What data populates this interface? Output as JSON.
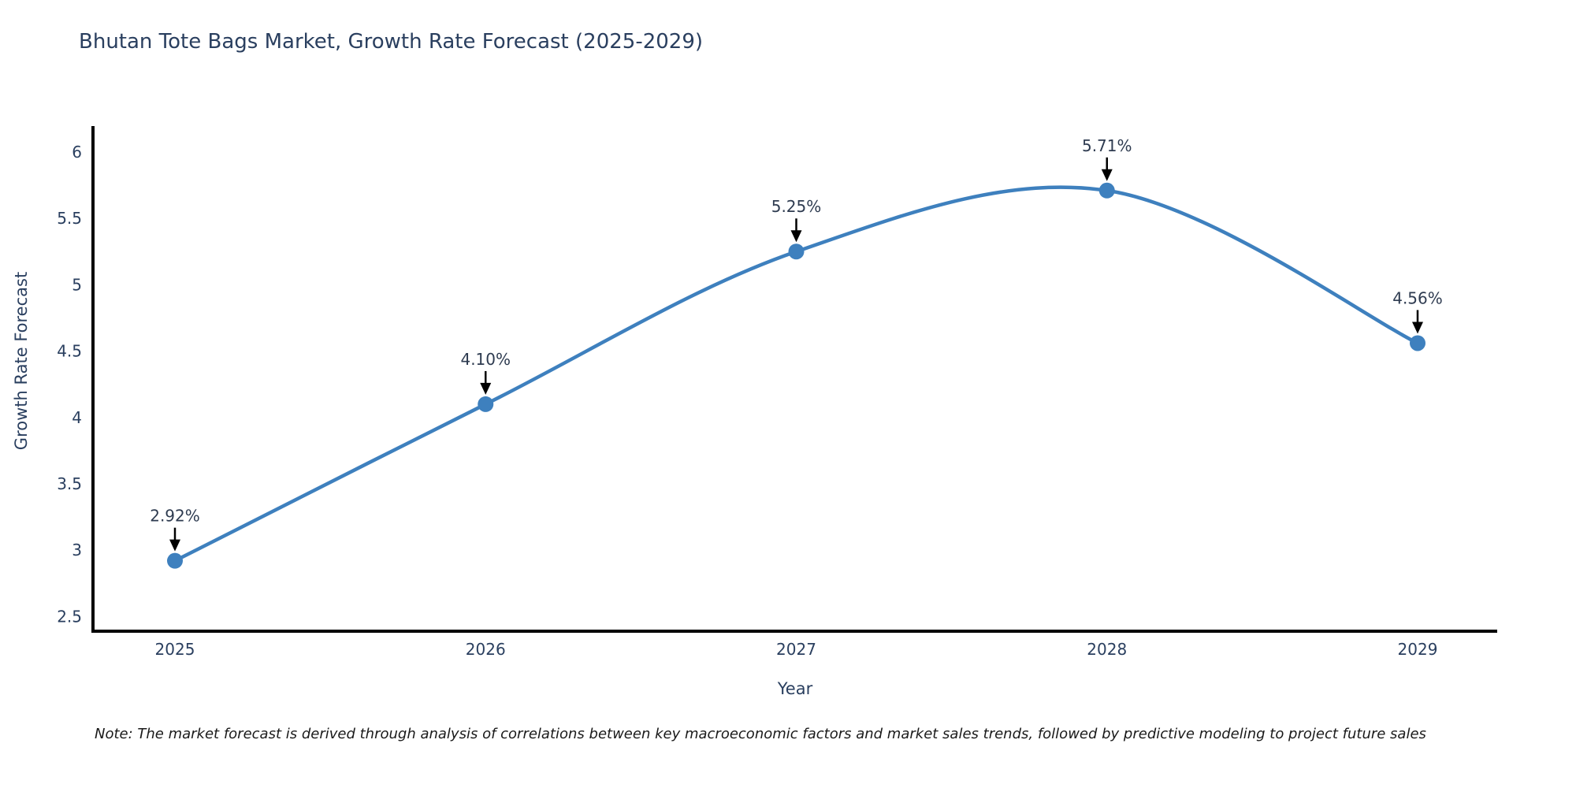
{
  "title": "Bhutan Tote Bags Market, Growth Rate Forecast (2025-2029)",
  "footnote": "Note: The market forecast is derived through analysis of correlations between key macroeconomic factors and market sales trends, followed by predictive modeling to project future sales",
  "chart_data": {
    "type": "line",
    "title": "Bhutan Tote Bags Market, Growth Rate Forecast (2025-2029)",
    "xlabel": "Year",
    "ylabel": "Growth Rate Forecast",
    "categories": [
      "2025",
      "2026",
      "2027",
      "2028",
      "2029"
    ],
    "values": [
      2.92,
      4.1,
      5.25,
      5.71,
      4.56
    ],
    "point_labels": [
      "2.92%",
      "4.10%",
      "5.25%",
      "5.71%",
      "4.56%"
    ],
    "yticks": [
      2.5,
      3,
      3.5,
      4,
      4.5,
      5,
      5.5,
      6
    ],
    "ytick_labels": [
      "2.5",
      "3",
      "3.5",
      "4",
      "4.5",
      "5",
      "5.5",
      "6"
    ],
    "ylim": [
      2.4,
      6.2
    ],
    "grid": false,
    "legend_position": "none",
    "line_shape": "spline",
    "line_color": "#3e80be",
    "marker_color": "#3e80be",
    "axis_color": "#000000",
    "annotation_arrow_color": "#000000",
    "text_color": "#2a3f5f"
  }
}
